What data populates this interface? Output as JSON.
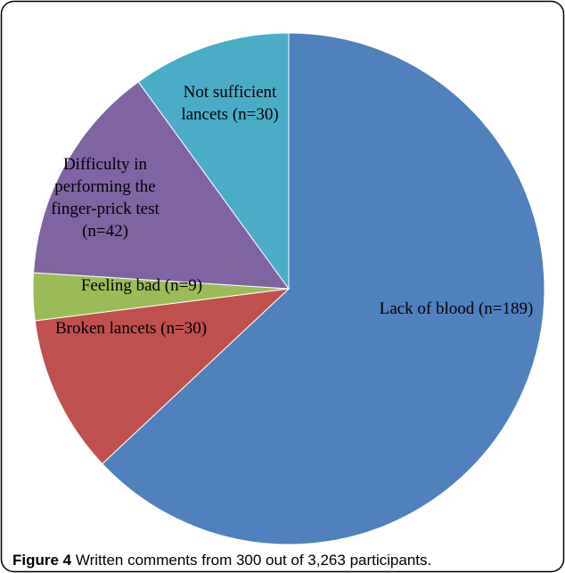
{
  "chart_data": {
    "type": "pie",
    "categories": [
      "Lack of blood  (n=189)",
      "Broken lancets  (n=30)",
      "Feeling bad (n=9)",
      "Difficulty in\nperforming the\nfinger-prick test\n(n=42)",
      "Not sufficient\nlancets (n=30)"
    ],
    "values": [
      189,
      30,
      9,
      42,
      30
    ],
    "colors": [
      "#4f81bd",
      "#c0504d",
      "#9bbb59",
      "#8064a2",
      "#4bacc6"
    ],
    "start_angle": 0,
    "direction": "clockwise"
  },
  "caption": {
    "label": "Figure 4",
    "text": " Written comments from 300 out of 3,263 participants."
  }
}
